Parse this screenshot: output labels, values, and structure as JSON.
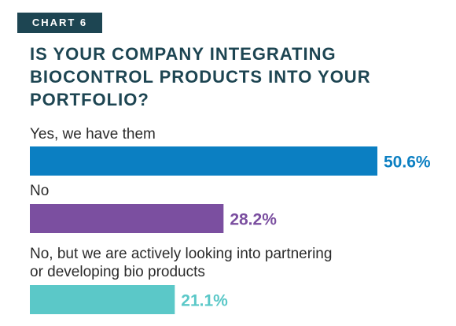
{
  "header": {
    "tag": "CHART 6",
    "title": "IS YOUR COMPANY INTEGRATING\nBIOCONTROL PRODUCTS INTO YOUR\nPORTFOLIO?"
  },
  "chart_data": {
    "type": "bar",
    "orientation": "horizontal",
    "title": "IS YOUR COMPANY INTEGRATING BIOCONTROL PRODUCTS INTO YOUR PORTFOLIO?",
    "categories": [
      "Yes, we have them",
      "No",
      "No, but we are actively looking into partnering\nor developing bio products"
    ],
    "values": [
      50.6,
      28.2,
      21.1
    ],
    "value_labels": [
      "50.6%",
      "28.2%",
      "21.1%"
    ],
    "colors": [
      "#0b7fc2",
      "#7b4fa0",
      "#5bc8c8"
    ],
    "xlim": [
      0,
      50.6
    ],
    "grid": false,
    "legend": "none"
  }
}
